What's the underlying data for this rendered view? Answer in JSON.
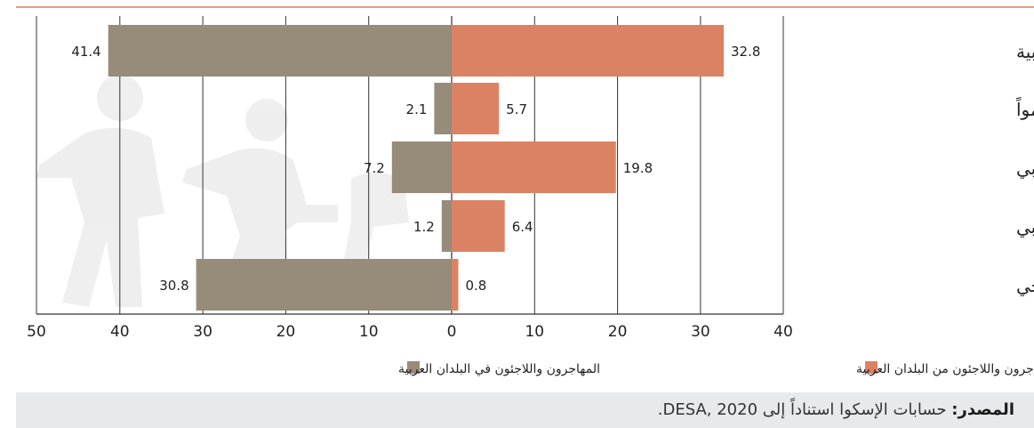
{
  "chart_data": {
    "type": "bar",
    "orientation": "horizontal",
    "diverging": true,
    "categories": [
      "المنطقة العربية",
      "أقل البلدان العربية نمواً",
      "بلدان المشرق العربي",
      "بلدان المغرب العربي",
      "بلدان مجلس التعاون الخليجي"
    ],
    "series": [
      {
        "name": "المهاجرون واللاجئون من البلدان العربية",
        "values": [
          32.8,
          5.7,
          19.8,
          6.4,
          0.8
        ],
        "color": "#dc8264",
        "side": "right"
      },
      {
        "name": "المهاجرون واللاجئون في البلدان العربية",
        "values": [
          41.4,
          2.1,
          7.2,
          1.2,
          30.8
        ],
        "color": "#978b7a",
        "side": "left"
      }
    ],
    "xlim_left": [
      0,
      50
    ],
    "xlim_right": [
      0,
      40
    ],
    "ticks_left": [
      50,
      40,
      30,
      20,
      10
    ],
    "ticks_right": [
      0,
      10,
      20,
      30,
      40
    ],
    "grid": true,
    "legend_position": "bottom",
    "title": "",
    "xlabel": "",
    "ylabel": ""
  },
  "colors": {
    "accent_rule": "#e07a5f",
    "axis": "#333333",
    "grid": "#333333",
    "text": "#222222"
  },
  "footer": {
    "source_label": "المصدر:",
    "source_text": " حسابات الإسكوا استناداً إلى DESA, 2020."
  }
}
